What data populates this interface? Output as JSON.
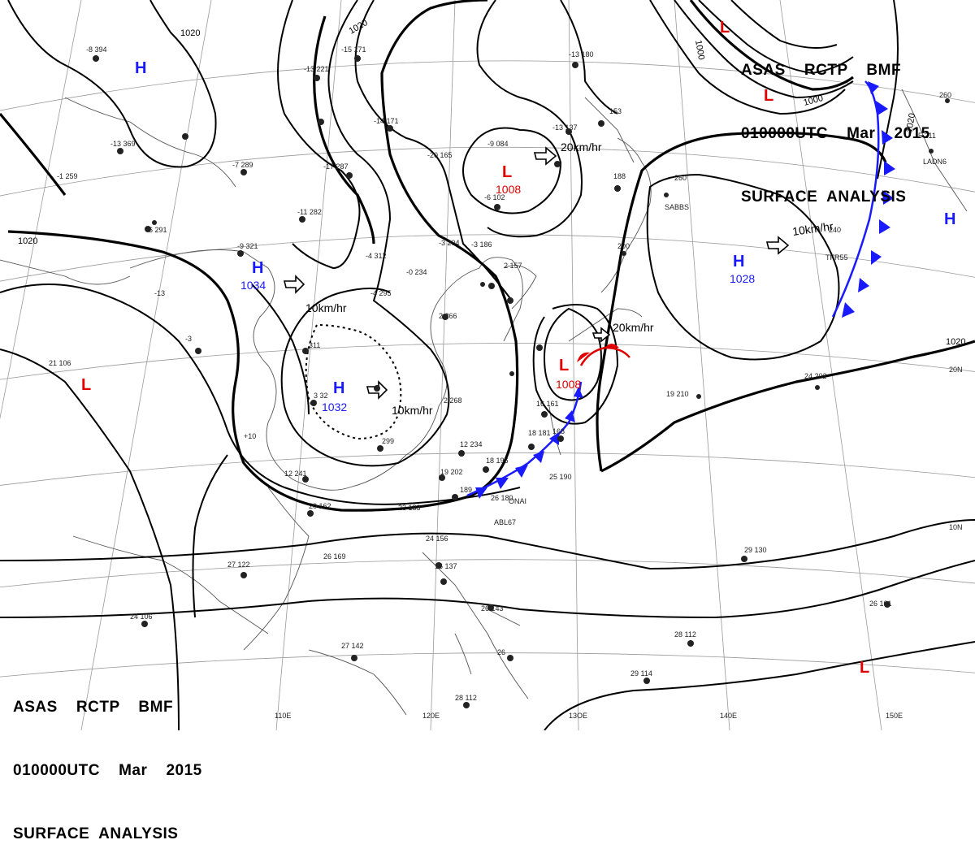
{
  "header": {
    "line1": "ASAS    RCTP    BMF",
    "line2": "010000UTC    Mar    2015",
    "line3": "SURFACE  ANALYSIS"
  },
  "longitude_labels": [
    "110E",
    "120E",
    "13OE",
    "140E",
    "150E"
  ],
  "latitude_labels": [
    "20N",
    "10N"
  ],
  "isobar_labels": [
    "1020",
    "1020",
    "1020",
    "1000",
    "1000",
    "1020",
    "1020"
  ],
  "pressure_centers": [
    {
      "type": "H",
      "value": "",
      "name": "high-north-mongolia"
    },
    {
      "type": "H",
      "value": "1034",
      "name": "high-1034"
    },
    {
      "type": "H",
      "value": "1032",
      "name": "high-1032"
    },
    {
      "type": "H",
      "value": "1028",
      "name": "high-1028"
    },
    {
      "type": "H",
      "value": "",
      "name": "high-east-edge"
    },
    {
      "type": "L",
      "value": "1008",
      "name": "low-1008"
    },
    {
      "type": "L",
      "value": "1008",
      "name": "low-1008-ryukyu"
    },
    {
      "type": "L",
      "value": "",
      "name": "low-northeast"
    },
    {
      "type": "L",
      "value": "",
      "name": "low-north-top"
    },
    {
      "type": "L",
      "value": "",
      "name": "low-west"
    },
    {
      "type": "L",
      "value": "",
      "name": "low-southeast"
    }
  ],
  "movement_labels": [
    "10km/hr",
    "10km/hr",
    "20km/hr",
    "20km/hr",
    "10km/hr"
  ],
  "station_codes": [
    "ONAI",
    "ABL67",
    "TFR55",
    "LADN6",
    "SABBS"
  ],
  "colors": {
    "high": "#1a1aff",
    "low": "#e00000",
    "cold_front": "#1a1aff",
    "warm_front": "#e00000",
    "isobar": "#000000",
    "grid": "#888888"
  }
}
